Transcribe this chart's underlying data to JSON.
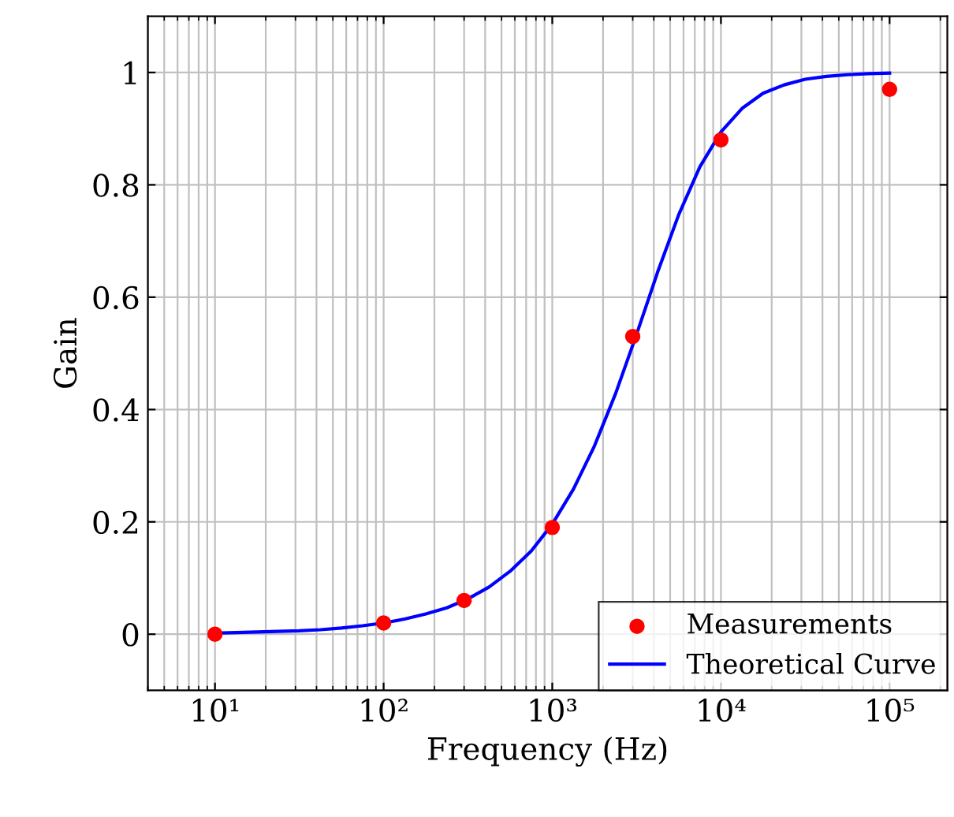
{
  "chart_data": {
    "type": "scatter",
    "xlabel": "Frequency (Hz)",
    "ylabel": "Gain",
    "log": "x",
    "xlim": [
      4,
      220000
    ],
    "ylim": [
      -0.1,
      1.1
    ],
    "xticks": [
      {
        "value": 10,
        "label": "10¹"
      },
      {
        "value": 100,
        "label": "10²"
      },
      {
        "value": 1000,
        "label": "10³"
      },
      {
        "value": 10000,
        "label": "10⁴"
      },
      {
        "value": 100000,
        "label": "10⁵"
      }
    ],
    "yticks": [
      0,
      0.2,
      0.4,
      0.6,
      0.8,
      1
    ],
    "grid": true,
    "legend": "bottom right",
    "series": [
      {
        "name": "Measurements",
        "color": "#ff0000",
        "marker": "circle",
        "x": [
          10,
          100,
          300,
          1000,
          3000,
          10000,
          100000
        ],
        "values": [
          0,
          0.02,
          0.06,
          0.19,
          0.53,
          0.88,
          0.97
        ]
      },
      {
        "name": "Theoretical Curve",
        "type": "line",
        "color": "#0000ff",
        "marker": "none",
        "line_style": "solid",
        "x": [
          10,
          13.3,
          17.8,
          23.7,
          31.6,
          42.2,
          56.2,
          75,
          100,
          133,
          178,
          237,
          316,
          422,
          562,
          750,
          1000,
          1334,
          1778,
          2371,
          3162,
          4217,
          5623,
          7499,
          10000,
          13335,
          17783,
          23714,
          31623,
          42170,
          56234,
          74989,
          100000
        ],
        "values": [
          0.002,
          0.003,
          0.004,
          0.005,
          0.006,
          0.008,
          0.011,
          0.015,
          0.02,
          0.027,
          0.036,
          0.047,
          0.063,
          0.084,
          0.112,
          0.148,
          0.196,
          0.258,
          0.335,
          0.428,
          0.534,
          0.645,
          0.747,
          0.832,
          0.894,
          0.936,
          0.963,
          0.978,
          0.988,
          0.993,
          0.996,
          0.998,
          0.999
        ]
      }
    ]
  }
}
